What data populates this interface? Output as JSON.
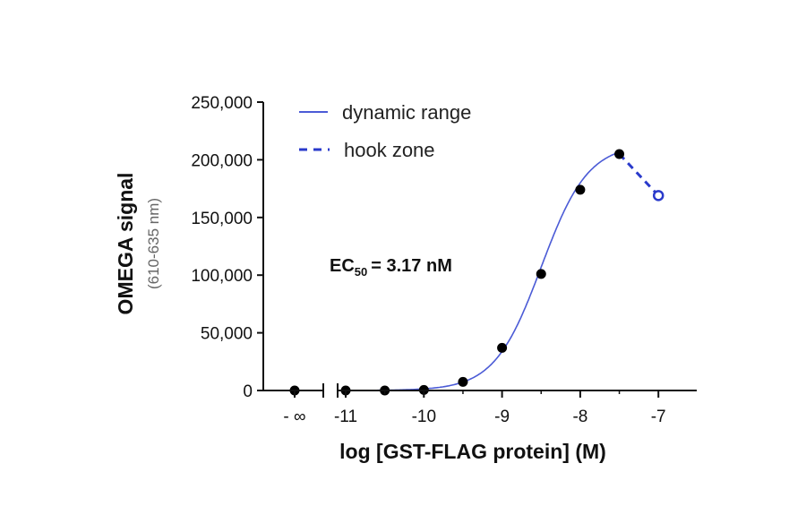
{
  "chart_data": {
    "type": "scatter",
    "x_axis": {
      "label": "log [GST-FLAG protein] (M)",
      "tick_labels": [
        "- ∞",
        "-11",
        "-10",
        "-9",
        "-8",
        "-7"
      ],
      "range": [
        -11.4,
        -6.5
      ]
    },
    "y_axis": {
      "label": "OMEGA signal",
      "sublabel": "(610-635 nm)",
      "tick_labels": [
        "0",
        "50,000",
        "100,000",
        "150,000",
        "200,000",
        "250,000"
      ],
      "range": [
        0,
        250000
      ]
    },
    "legend": {
      "position": "top-left",
      "entries": [
        {
          "label": "dynamic range",
          "style": "solid"
        },
        {
          "label": "hook zone",
          "style": "dashed"
        }
      ]
    },
    "annotation": {
      "text": "EC",
      "subscript": "50",
      "suffix": "=  3.17 nM"
    },
    "series": [
      {
        "name": "dynamic range",
        "points": [
          {
            "x": "-∞",
            "y": 0
          },
          {
            "x": -11,
            "y": 0
          },
          {
            "x": -10.5,
            "y": 0
          },
          {
            "x": -10,
            "y": 500
          },
          {
            "x": -9.5,
            "y": 7500
          },
          {
            "x": -9,
            "y": 37000
          },
          {
            "x": -8.5,
            "y": 101000
          },
          {
            "x": -8,
            "y": 174000
          },
          {
            "x": -7.5,
            "y": 205000
          }
        ]
      },
      {
        "name": "hook zone",
        "points": [
          {
            "x": -7,
            "y": 169000
          }
        ]
      }
    ],
    "fit": {
      "bottom": 0,
      "top": 214000,
      "log_ec50": -8.499,
      "hill_slope": 1.45,
      "x_end": -7.5
    },
    "grid": false,
    "colors": {
      "curve": "#4b5bd6",
      "points": "#000000",
      "hook_point": "#2a3acb",
      "axis": "#111111"
    }
  }
}
